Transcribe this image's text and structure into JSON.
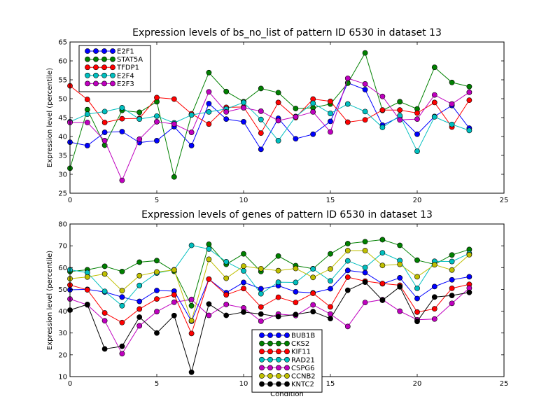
{
  "chart_data": [
    {
      "type": "line",
      "title": "Expression levels of bs_no_list of pattern ID 6530 in dataset 13",
      "xlabel": "",
      "ylabel": "Expression level (percentile)",
      "xlim": [
        0,
        25
      ],
      "ylim": [
        25,
        65
      ],
      "xticks": [
        0,
        5,
        10,
        15,
        20,
        25
      ],
      "yticks": [
        25,
        30,
        35,
        40,
        45,
        50,
        55,
        60,
        65
      ],
      "x": [
        0,
        1,
        2,
        3,
        4,
        5,
        6,
        7,
        8,
        9,
        10,
        11,
        12,
        13,
        14,
        15,
        16,
        17,
        18,
        19,
        20,
        21,
        22,
        23
      ],
      "legend_position": "upper-left",
      "series": [
        {
          "name": "E2F1",
          "color": "#0000ff",
          "values": [
            38.5,
            37.6,
            41.1,
            41.3,
            38.4,
            38.9,
            42.6,
            37.6,
            48.7,
            44.6,
            43.9,
            36.6,
            44.8,
            39.4,
            40.6,
            44.0,
            54.2,
            52.4,
            43.0,
            45.2,
            40.6,
            45.3,
            48.2,
            42.2
          ]
        },
        {
          "name": "STAT5A",
          "color": "#008000",
          "values": [
            31.6,
            47.1,
            37.7,
            46.9,
            46.4,
            49.2,
            29.3,
            45.8,
            56.9,
            51.9,
            49.2,
            52.7,
            51.6,
            47.4,
            47.6,
            48.6,
            54.1,
            62.1,
            46.9,
            49.2,
            47.3,
            58.3,
            54.3,
            53.2
          ]
        },
        {
          "name": "TFDP1",
          "color": "#ff0000",
          "values": [
            53.4,
            49.8,
            43.7,
            44.7,
            44.8,
            50.3,
            49.9,
            46.0,
            43.3,
            47.7,
            47.8,
            40.9,
            49.0,
            45.0,
            49.9,
            49.3,
            43.8,
            44.4,
            47.0,
            47.0,
            46.2,
            49.0,
            42.5,
            49.6
          ]
        },
        {
          "name": "E2F4",
          "color": "#00bfbf",
          "values": [
            43.9,
            45.9,
            46.6,
            47.6,
            44.6,
            45.4,
            43.6,
            45.7,
            46.5,
            47.3,
            49.0,
            44.5,
            38.9,
            45.3,
            48.8,
            46.1,
            48.6,
            46.6,
            42.4,
            45.5,
            36.1,
            45.2,
            43.2,
            41.6
          ]
        },
        {
          "name": "E2F3",
          "color": "#bf00bf",
          "values": [
            43.7,
            43.7,
            38.9,
            28.4,
            39.3,
            43.9,
            43.3,
            41.1,
            51.8,
            46.5,
            47.6,
            46.7,
            44.2,
            45.2,
            46.5,
            41.2,
            55.4,
            53.9,
            50.6,
            44.4,
            44.6,
            51.0,
            48.6,
            51.7
          ]
        }
      ]
    },
    {
      "type": "line",
      "title": "Expression levels of genes of pattern ID 6530 in dataset 13",
      "xlabel": "Condition",
      "ylabel": "Expression level (percentile)",
      "xlim": [
        0,
        25
      ],
      "ylim": [
        10,
        80
      ],
      "xticks": [
        0,
        5,
        10,
        15,
        20,
        25
      ],
      "yticks": [
        10,
        20,
        30,
        40,
        50,
        60,
        70,
        80
      ],
      "x": [
        0,
        1,
        2,
        3,
        4,
        5,
        6,
        7,
        8,
        9,
        10,
        11,
        12,
        13,
        14,
        15,
        16,
        17,
        18,
        19,
        20,
        21,
        22,
        23
      ],
      "legend_position": "lower-center",
      "series": [
        {
          "name": "BUB1B",
          "color": "#0000ff",
          "values": [
            49.8,
            50.0,
            48.8,
            46.5,
            44.5,
            49.5,
            49.2,
            35.4,
            54.7,
            48.5,
            53.2,
            50.3,
            51.7,
            48.9,
            48.4,
            50.3,
            58.7,
            57.7,
            52.6,
            55.3,
            45.8,
            51.3,
            54.4,
            55.8
          ]
        },
        {
          "name": "CKS2",
          "color": "#008000",
          "values": [
            58.2,
            59.0,
            60.6,
            58.2,
            62.5,
            63.2,
            58.3,
            42.5,
            70.7,
            61.5,
            66.3,
            58.2,
            65.3,
            60.9,
            59.5,
            66.3,
            71.0,
            71.9,
            72.8,
            70.2,
            63.4,
            61.5,
            65.8,
            68.3
          ]
        },
        {
          "name": "KIF11",
          "color": "#ff0000",
          "values": [
            52.0,
            49.8,
            39.2,
            34.8,
            41.0,
            45.6,
            47.5,
            29.8,
            54.7,
            47.5,
            50.4,
            41.9,
            46.4,
            44.0,
            48.2,
            42.0,
            55.6,
            53.8,
            52.7,
            51.9,
            39.6,
            41.1,
            50.5,
            52.3
          ]
        },
        {
          "name": "RAD21",
          "color": "#00bfbf",
          "values": [
            59.0,
            57.7,
            49.1,
            42.5,
            51.8,
            57.5,
            59.0,
            70.2,
            68.5,
            62.7,
            58.5,
            48.0,
            53.3,
            53.2,
            59.4,
            53.9,
            63.1,
            60.0,
            66.8,
            63.2,
            50.5,
            62.9,
            62.8,
            66.5
          ]
        },
        {
          "name": "CSPG6",
          "color": "#bf00bf",
          "values": [
            45.6,
            42.9,
            35.6,
            20.5,
            33.3,
            39.8,
            44.1,
            45.4,
            38.1,
            43.1,
            41.5,
            35.4,
            38.7,
            38.0,
            42.9,
            38.7,
            33.0,
            44.0,
            45.3,
            40.0,
            36.1,
            36.4,
            43.6,
            50.6
          ]
        },
        {
          "name": "CCNB2",
          "color": "#bfbf00",
          "values": [
            54.9,
            55.7,
            57.1,
            49.4,
            56.3,
            58.0,
            58.9,
            35.7,
            63.8,
            55.1,
            60.7,
            59.5,
            58.6,
            59.6,
            55.5,
            59.4,
            67.8,
            67.8,
            61.0,
            61.5,
            55.8,
            61.3,
            58.9,
            65.9
          ]
        },
        {
          "name": "KNTC2",
          "color": "#000000",
          "values": [
            40.5,
            43.1,
            22.7,
            23.9,
            37.3,
            30.0,
            38.0,
            12.0,
            43.3,
            38.1,
            39.6,
            38.7,
            37.5,
            38.5,
            39.8,
            36.6,
            49.6,
            53.3,
            45.0,
            51.2,
            35.3,
            46.5,
            47.2,
            48.6
          ]
        }
      ]
    }
  ]
}
